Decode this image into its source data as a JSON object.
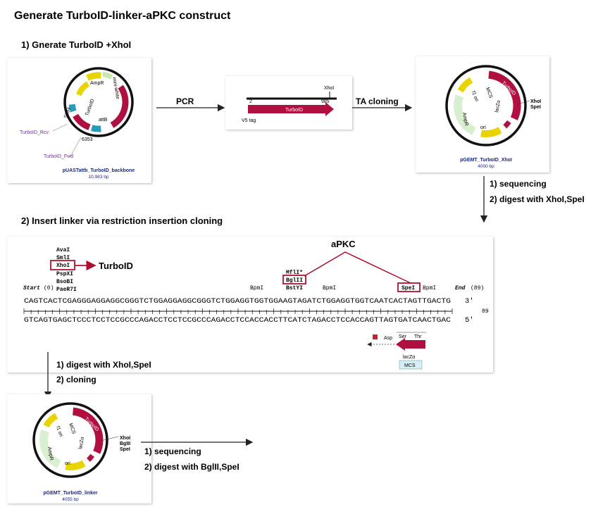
{
  "title": "Generate TurboID-linker-aPKC construct",
  "step1": {
    "heading": "1) Gnerate TurboID +XhoI",
    "backbone": {
      "amp_r": "AmpR",
      "turbo_id": "TurboID",
      "att_b": "attB",
      "mini_white": "mini-white",
      "pos_a": "6353",
      "pos_b": "5234",
      "primer_rev": "TurboID_Rcv",
      "primer_fwd": "TurboID_Fwd",
      "name": "pUASTattb_TurboID_backbone",
      "size": "10,983 bp"
    },
    "pcr_label": "PCR",
    "pcr_product": {
      "site": "XhoI",
      "start": "2",
      "end": "985",
      "feature": "TurboID",
      "tag": "V5 tag"
    },
    "ta_label": "TA cloning",
    "intermediate": {
      "turbo_id": "TurboID",
      "mcs": "MCS",
      "f1_ori": "f1 ori",
      "amp_r": "AmpR",
      "lacz": "lacZα",
      "ori": "ori",
      "sites": [
        "XhoI",
        "SpeI"
      ],
      "name": "pGEMT_TurboID_XhoI",
      "size": "4000 bp"
    },
    "next_steps": [
      "1) sequencing",
      "2) digest with XhoI,SpeI"
    ]
  },
  "step2": {
    "heading": "2) Insert linker via  restriction insertion cloning",
    "map": {
      "left_enzymes": [
        "AvaI",
        "SmlI",
        "XhoI",
        "PspXI",
        "BsoBI",
        "PaeR7I"
      ],
      "left_target": "TurboID",
      "right_target": "aPKC",
      "mid_enzymes": [
        "MflI*",
        "BglII",
        "BstYI"
      ],
      "bpm": [
        "BpmI",
        "BpmI",
        "BpmI"
      ],
      "spe": "SpeI",
      "start": "Start",
      "start_pos": "(0)",
      "end": "End",
      "end_pos": "(89)",
      "top_strand": "CAGTCACTCGAGGGAGGAGGCGGGTCTGGAGGAGGCGGGTCTGGAGGTGGTGGAAGTAGATCTGGAGGTGGTCAATCACTAGTTGACTG",
      "top_end": "3'",
      "ruler_end": "89",
      "bottom_strand": "GTCAGTGAGCTCCCTCCTCCGCCCAGACCTCCTCCGCCCAGACCTCCACCACCTTCATCTAGACCTCCACCAGTTAGTGATCAACTGAC",
      "bottom_end": "5'",
      "aa": [
        "Asp",
        "Ser",
        "Thr"
      ],
      "lacz": "lacZα",
      "mcs": "MCS"
    },
    "cloning_steps": [
      "1) digest with XhoI,SpeI",
      "2) cloning"
    ],
    "product": {
      "turbo_id": "TurboID",
      "mcs": "MCS",
      "f1_ori": "f1 ori",
      "amp_r": "AmpR",
      "lacz": "lacZα",
      "ori": "ori",
      "sites": [
        "XhoI",
        "BglII",
        "SpeI"
      ],
      "name": "pGEMT_TurboID_linker",
      "size": "4055 bp"
    },
    "next_steps": [
      "1) sequencing",
      "2) digest with BglII,SpeI"
    ]
  }
}
